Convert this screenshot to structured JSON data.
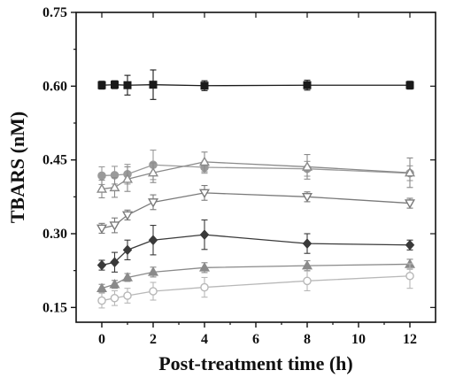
{
  "chart_data": {
    "type": "line",
    "title": "",
    "xlabel": "Post-treatment time (h)",
    "ylabel": "TBARS (nM)",
    "xlim": [
      -1,
      13
    ],
    "ylim": [
      0.12,
      0.75
    ],
    "xticks": [
      0,
      2,
      4,
      6,
      8,
      10,
      12
    ],
    "xtick_labels": [
      "0",
      "2",
      "4",
      "6",
      "8",
      "10",
      "12"
    ],
    "yticks": [
      0.15,
      0.3,
      0.45,
      0.6,
      0.75
    ],
    "ytick_labels": [
      "0.15",
      "0.30",
      "0.45",
      "0.60",
      "0.75"
    ],
    "grid": false,
    "x": [
      0,
      0.5,
      1,
      2,
      4,
      8,
      12
    ],
    "series": [
      {
        "color": "#1a1a1a",
        "marker": "square-filled",
        "values": [
          0.602,
          0.603,
          0.602,
          0.603,
          0.601,
          0.602,
          0.602
        ],
        "errors": [
          0.008,
          0.008,
          0.02,
          0.03,
          0.01,
          0.01,
          0.008
        ]
      },
      {
        "color": "#9a9a9a",
        "marker": "circle-filled",
        "values": [
          0.418,
          0.419,
          0.421,
          0.44,
          0.435,
          0.432,
          0.423
        ],
        "errors": [
          0.018,
          0.018,
          0.02,
          0.03,
          0.012,
          0.015,
          0.015
        ]
      },
      {
        "color": "#8a8a8a",
        "marker": "triangle-up-open",
        "values": [
          0.391,
          0.394,
          0.411,
          0.424,
          0.446,
          0.436,
          0.424
        ],
        "errors": [
          0.018,
          0.02,
          0.025,
          0.02,
          0.02,
          0.025,
          0.03
        ]
      },
      {
        "color": "#7a7a7a",
        "marker": "triangle-down-open",
        "values": [
          0.311,
          0.317,
          0.338,
          0.364,
          0.383,
          0.375,
          0.362
        ],
        "errors": [
          0.01,
          0.015,
          0.01,
          0.015,
          0.015,
          0.01,
          0.01
        ]
      },
      {
        "color": "#3a3a3a",
        "marker": "diamond-filled",
        "values": [
          0.236,
          0.242,
          0.267,
          0.287,
          0.298,
          0.28,
          0.277
        ],
        "errors": [
          0.01,
          0.02,
          0.02,
          0.03,
          0.03,
          0.02,
          0.01
        ]
      },
      {
        "color": "#8a8a8a",
        "marker": "triangle-up-filled",
        "values": [
          0.189,
          0.197,
          0.211,
          0.222,
          0.231,
          0.235,
          0.238
        ],
        "errors": [
          0.008,
          0.008,
          0.008,
          0.01,
          0.01,
          0.01,
          0.01
        ]
      },
      {
        "color": "#b8b8b8",
        "marker": "circle-open",
        "values": [
          0.164,
          0.169,
          0.174,
          0.183,
          0.191,
          0.204,
          0.214
        ],
        "errors": [
          0.015,
          0.015,
          0.015,
          0.018,
          0.02,
          0.02,
          0.025
        ]
      }
    ]
  }
}
